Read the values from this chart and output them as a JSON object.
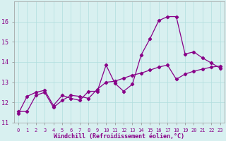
{
  "xlabel": "Windchill (Refroidissement éolien,°C)",
  "background_color": "#d8f0f0",
  "line_color": "#880088",
  "grid_color": "#b0dede",
  "xlim": [
    -0.5,
    23.5
  ],
  "ylim": [
    11,
    17
  ],
  "yticks": [
    11,
    12,
    13,
    14,
    15,
    16
  ],
  "xticks": [
    0,
    1,
    2,
    3,
    4,
    5,
    6,
    7,
    8,
    9,
    10,
    11,
    12,
    13,
    14,
    15,
    16,
    17,
    18,
    19,
    20,
    21,
    22,
    23
  ],
  "series1_x": [
    0,
    1,
    2,
    3,
    4,
    5,
    6,
    7,
    8,
    9,
    10,
    11,
    12,
    13,
    14,
    15,
    16,
    17,
    18,
    19,
    20,
    21,
    22,
    23
  ],
  "series1_y": [
    11.45,
    12.3,
    12.5,
    12.6,
    11.85,
    12.35,
    12.2,
    12.1,
    12.55,
    12.55,
    13.85,
    12.95,
    12.55,
    12.9,
    14.35,
    15.15,
    16.05,
    16.25,
    16.25,
    14.4,
    14.5,
    14.2,
    13.95,
    13.7
  ],
  "series2_x": [
    0,
    1,
    2,
    3,
    4,
    5,
    6,
    7,
    8,
    9,
    10,
    11,
    12,
    13,
    14,
    15,
    16,
    17,
    18,
    19,
    20,
    21,
    22,
    23
  ],
  "series2_y": [
    11.55,
    11.55,
    12.35,
    12.5,
    11.75,
    12.1,
    12.35,
    12.3,
    12.2,
    12.65,
    13.0,
    13.05,
    13.2,
    13.35,
    13.45,
    13.6,
    13.75,
    13.85,
    13.15,
    13.4,
    13.55,
    13.65,
    13.75,
    13.8
  ],
  "xlabel_fontsize": 6.0,
  "xlabel_color": "#880088",
  "ytick_fontsize": 6.0,
  "xtick_fontsize": 5.0
}
